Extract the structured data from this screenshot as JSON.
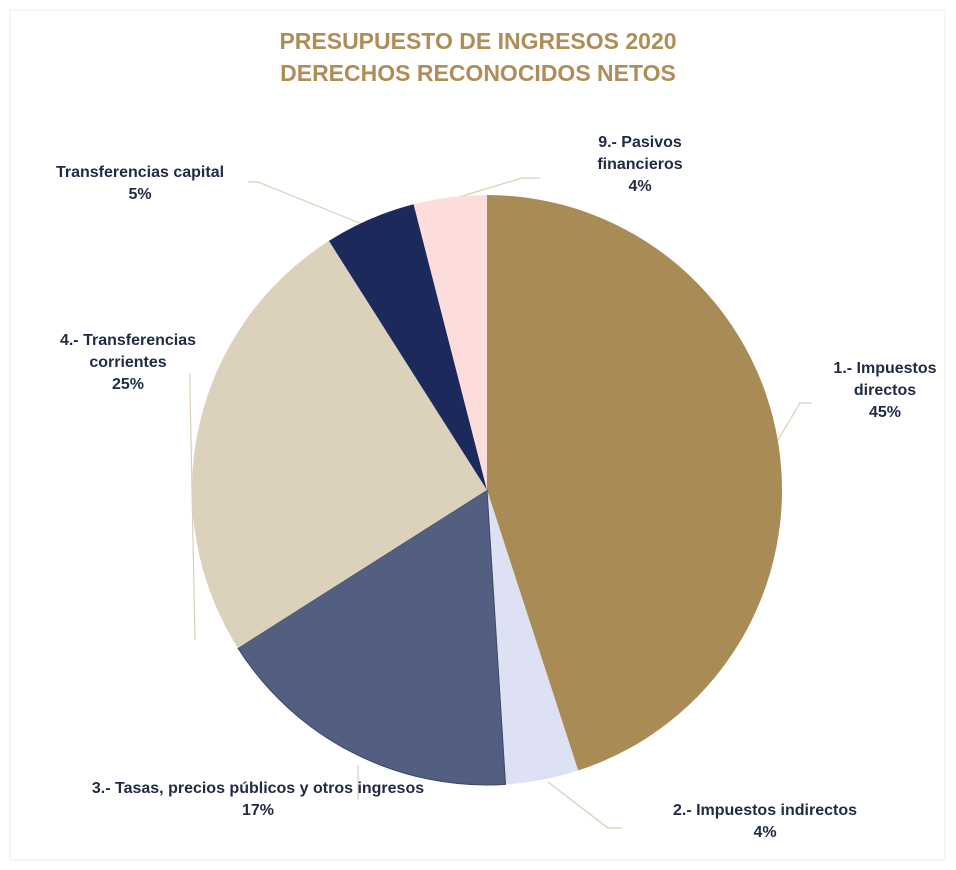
{
  "chart_data": {
    "type": "pie",
    "title": "PRESUPUESTO DE INGRESOS 2020",
    "subtitle": "DERECHOS RECONOCIDOS NETOS",
    "categories": [
      "1.- Impuestos directos",
      "2.- Impuestos indirectos",
      "3.- Tasas, precios públicos y otros ingresos",
      "4.- Transferencias corrientes",
      "Transferencias capital",
      "9.- Pasivos financieros"
    ],
    "values": [
      45,
      4,
      17,
      25,
      5,
      4
    ],
    "value_labels": [
      "45%",
      "4%",
      "17%",
      "25%",
      "5%",
      "4%"
    ],
    "colors": [
      "#a98c55",
      "#dde1f3",
      "#525f80",
      "#dcd2bc",
      "#1b2a5a",
      "#fddcdc"
    ]
  }
}
